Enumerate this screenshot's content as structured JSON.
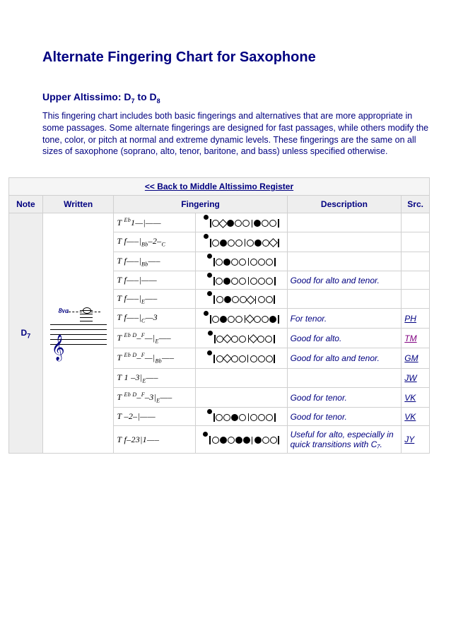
{
  "title": "Alternate Fingering Chart for Saxophone",
  "subtitle_prefix": "Upper Altissimo: D",
  "subtitle_sub1": "7",
  "subtitle_mid": " to D",
  "subtitle_sub2": "8",
  "intro": "This fingering chart includes both basic fingerings and alternatives that are more appropriate in some passages. Some alternate fingerings are designed for fast passages, while others modify the tone, color, or pitch at normal and extreme dynamic levels. These fingerings are the same on all sizes of saxophone (soprano, alto, tenor, baritone, and bass) unless specified otherwise.",
  "back_link": "<< Back to Middle Altissimo Register",
  "headers": {
    "note": "Note",
    "written": "Written",
    "fingering": "Fingering",
    "description": "Description",
    "src": "Src."
  },
  "note_label": "D",
  "note_sub": "7",
  "ottava": "8va",
  "rows": [
    {
      "text_html": "T <span class='sup'>Eb</span>1—|——",
      "keys": "o p f o o b f o o",
      "desc": "",
      "src": "",
      "purple": false
    },
    {
      "text_html": "T f—–|<span class='sub'>Bb</span>–2–<span class='sub'>C</span>",
      "keys": "o f o o b o f o p",
      "desc": "",
      "src": "",
      "purple": false
    },
    {
      "text_html": "T f—–|<span class='sub'>Bb</span>—–",
      "keys": "o f o o b o o o",
      "desc": "",
      "src": "",
      "purple": false
    },
    {
      "text_html": "T f—–|——",
      "keys": "o f o o b o o o",
      "desc": "Good for alto and tenor.",
      "src": "",
      "purple": false
    },
    {
      "text_html": "T f—–|<span class='sub'>E</span>—–",
      "keys": "o f o o p b o o",
      "desc": "",
      "src": "",
      "purple": false
    },
    {
      "text_html": "T f—–|<span class='sub'>C</span>—3",
      "keys": "o f o o b p o o f",
      "desc": "For tenor.",
      "src": "PH",
      "purple": false
    },
    {
      "text_html": "T <span class='sup'>Eb D</span>–<span class='sup'>F</span>—|<span class='sub'>E</span>—–",
      "keys": "o p o o b p o o",
      "desc": "Good for alto.",
      "src": "TM",
      "purple": true
    },
    {
      "text_html": "T <span class='sup'>Eb D</span>–<span class='sup'>F</span>—|<span class='sub'>Bb</span>—–",
      "keys": "o p o o b o o o",
      "desc": "Good for alto and tenor.",
      "src": "GM",
      "purple": false
    },
    {
      "text_html": "T 1 –3|<span class='sub'>E</span>—–",
      "keys": "",
      "desc": "",
      "src": "JW",
      "purple": false
    },
    {
      "text_html": "T <span class='sup'>Eb D</span>–<span class='sup'>F</span>–3|<span class='sub'>E</span>—–",
      "keys": "",
      "desc": "Good for tenor.",
      "src": "VK",
      "purple": false
    },
    {
      "text_html": "T –2–|——",
      "keys": "o o f o b o o o",
      "desc": "Good for tenor.",
      "src": "VK",
      "purple": false
    },
    {
      "text_html": "T f–23|1—–",
      "keys": "o f o f f b f o o",
      "desc": "Useful for alto, especially in quick transitions with C₇.",
      "src": "JY",
      "purple": false
    }
  ]
}
